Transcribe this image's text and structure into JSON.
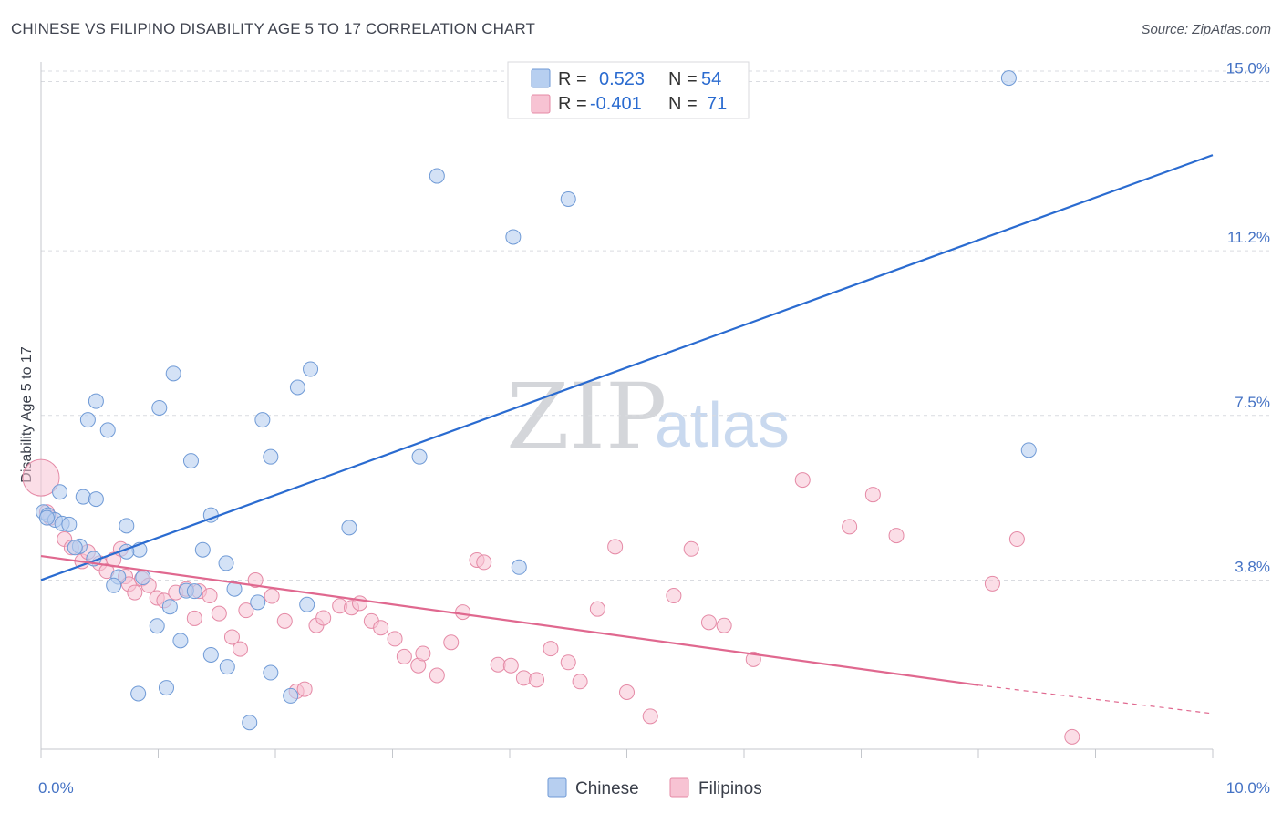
{
  "title": "CHINESE VS FILIPINO DISABILITY AGE 5 TO 17 CORRELATION CHART",
  "source": "Source: ZipAtlas.com",
  "watermark": {
    "zip": "ZIP",
    "atlas": "atlas"
  },
  "legend": {
    "r_label": "R =",
    "n_label": "N =",
    "chinese": {
      "r": "0.523",
      "n": "54"
    },
    "filipinos": {
      "r": "-0.401",
      "n": "71"
    }
  },
  "colors": {
    "chinese_fill": "#b7cff0",
    "chinese_stroke": "#6f9ad6",
    "chinese_line": "#2a6bd0",
    "filipino_fill": "#f7c3d3",
    "filipino_stroke": "#e58aa6",
    "filipino_line": "#e0688f",
    "grid": "#d9dbe0",
    "tick_text": "#4472c4"
  },
  "chart_data": {
    "type": "scatter",
    "title": "CHINESE VS FILIPINO DISABILITY AGE 5 TO 17 CORRELATION CHART",
    "ylabel": "Disability Age 5 to 17",
    "xlabel": "",
    "xlim": [
      0,
      10
    ],
    "ylim": [
      0,
      15.4
    ],
    "x_tick_labels": [
      "0.0%",
      "10.0%"
    ],
    "y_ticks": [
      {
        "value": 3.8,
        "label": "3.8%"
      },
      {
        "value": 7.5,
        "label": "7.5%"
      },
      {
        "value": 11.2,
        "label": "11.2%"
      },
      {
        "value": 15.0,
        "label": "15.0%"
      }
    ],
    "grid": true,
    "legend_position": "top-center",
    "series": [
      {
        "name": "Chinese",
        "points": [
          [
            8.26,
            15.08
          ],
          [
            3.38,
            12.88
          ],
          [
            4.5,
            12.36
          ],
          [
            4.03,
            11.51
          ],
          [
            2.3,
            8.54
          ],
          [
            1.13,
            8.44
          ],
          [
            2.19,
            8.13
          ],
          [
            0.47,
            7.82
          ],
          [
            1.01,
            7.67
          ],
          [
            0.4,
            7.4
          ],
          [
            1.89,
            7.4
          ],
          [
            0.57,
            7.17
          ],
          [
            1.96,
            6.57
          ],
          [
            3.23,
            6.57
          ],
          [
            8.43,
            6.72
          ],
          [
            1.28,
            6.48
          ],
          [
            0.16,
            5.78
          ],
          [
            0.36,
            5.67
          ],
          [
            0.47,
            5.62
          ],
          [
            0.02,
            5.33
          ],
          [
            0.06,
            5.26
          ],
          [
            0.12,
            5.15
          ],
          [
            1.45,
            5.26
          ],
          [
            0.18,
            5.07
          ],
          [
            0.24,
            5.05
          ],
          [
            0.73,
            5.02
          ],
          [
            2.63,
            4.98
          ],
          [
            0.33,
            4.56
          ],
          [
            0.29,
            4.53
          ],
          [
            0.84,
            4.48
          ],
          [
            0.73,
            4.44
          ],
          [
            1.38,
            4.48
          ],
          [
            0.45,
            4.28
          ],
          [
            1.58,
            4.18
          ],
          [
            4.08,
            4.09
          ],
          [
            0.66,
            3.87
          ],
          [
            0.87,
            3.86
          ],
          [
            0.62,
            3.68
          ],
          [
            1.24,
            3.56
          ],
          [
            1.31,
            3.55
          ],
          [
            1.65,
            3.6
          ],
          [
            1.85,
            3.3
          ],
          [
            2.27,
            3.25
          ],
          [
            1.1,
            3.2
          ],
          [
            0.99,
            2.77
          ],
          [
            1.19,
            2.44
          ],
          [
            1.45,
            2.12
          ],
          [
            1.59,
            1.85
          ],
          [
            1.96,
            1.72
          ],
          [
            1.07,
            1.38
          ],
          [
            0.83,
            1.25
          ],
          [
            2.13,
            1.2
          ],
          [
            1.78,
            0.6
          ],
          [
            0.05,
            5.2
          ]
        ]
      },
      {
        "name": "Filipinos",
        "points": [
          [
            0.0,
            6.1
          ],
          [
            0.05,
            5.33
          ],
          [
            0.08,
            5.2
          ],
          [
            0.2,
            4.72
          ],
          [
            0.26,
            4.53
          ],
          [
            0.35,
            4.22
          ],
          [
            0.4,
            4.43
          ],
          [
            0.5,
            4.18
          ],
          [
            0.56,
            4.0
          ],
          [
            0.62,
            4.26
          ],
          [
            0.68,
            4.5
          ],
          [
            0.72,
            3.88
          ],
          [
            0.75,
            3.71
          ],
          [
            0.8,
            3.52
          ],
          [
            0.86,
            3.83
          ],
          [
            0.92,
            3.68
          ],
          [
            0.99,
            3.4
          ],
          [
            1.05,
            3.34
          ],
          [
            1.15,
            3.52
          ],
          [
            1.24,
            3.6
          ],
          [
            1.31,
            2.94
          ],
          [
            1.35,
            3.55
          ],
          [
            1.44,
            3.45
          ],
          [
            1.52,
            3.05
          ],
          [
            1.63,
            2.52
          ],
          [
            1.7,
            2.25
          ],
          [
            1.75,
            3.12
          ],
          [
            1.83,
            3.8
          ],
          [
            1.97,
            3.44
          ],
          [
            2.08,
            2.88
          ],
          [
            2.18,
            1.3
          ],
          [
            2.25,
            1.35
          ],
          [
            2.35,
            2.78
          ],
          [
            2.41,
            2.95
          ],
          [
            2.55,
            3.22
          ],
          [
            2.65,
            3.18
          ],
          [
            2.72,
            3.28
          ],
          [
            2.82,
            2.88
          ],
          [
            2.9,
            2.73
          ],
          [
            3.02,
            2.48
          ],
          [
            3.1,
            2.08
          ],
          [
            3.22,
            1.88
          ],
          [
            3.26,
            2.15
          ],
          [
            3.38,
            1.66
          ],
          [
            3.5,
            2.4
          ],
          [
            3.6,
            3.08
          ],
          [
            3.72,
            4.25
          ],
          [
            3.78,
            4.2
          ],
          [
            3.9,
            1.9
          ],
          [
            4.01,
            1.88
          ],
          [
            4.12,
            1.6
          ],
          [
            4.23,
            1.56
          ],
          [
            4.35,
            2.26
          ],
          [
            4.5,
            1.95
          ],
          [
            4.6,
            1.52
          ],
          [
            4.75,
            3.15
          ],
          [
            4.9,
            4.55
          ],
          [
            5.0,
            1.28
          ],
          [
            5.2,
            0.74
          ],
          [
            5.4,
            3.45
          ],
          [
            5.55,
            4.5
          ],
          [
            5.7,
            2.85
          ],
          [
            5.83,
            2.78
          ],
          [
            6.08,
            2.02
          ],
          [
            6.5,
            6.05
          ],
          [
            6.9,
            5.0
          ],
          [
            7.1,
            5.72
          ],
          [
            7.3,
            4.8
          ],
          [
            8.12,
            3.72
          ],
          [
            8.33,
            4.72
          ],
          [
            8.8,
            0.28
          ]
        ]
      }
    ],
    "trendlines": [
      {
        "name": "Chinese",
        "x": [
          0,
          10
        ],
        "y": [
          3.8,
          13.35
        ]
      },
      {
        "name": "Filipinos",
        "x": [
          0,
          8.0
        ],
        "y": [
          4.34,
          1.44
        ],
        "dashed_extension_to": [
          10,
          0.8
        ]
      }
    ]
  },
  "bottom_legend": [
    "Chinese",
    "Filipinos"
  ]
}
